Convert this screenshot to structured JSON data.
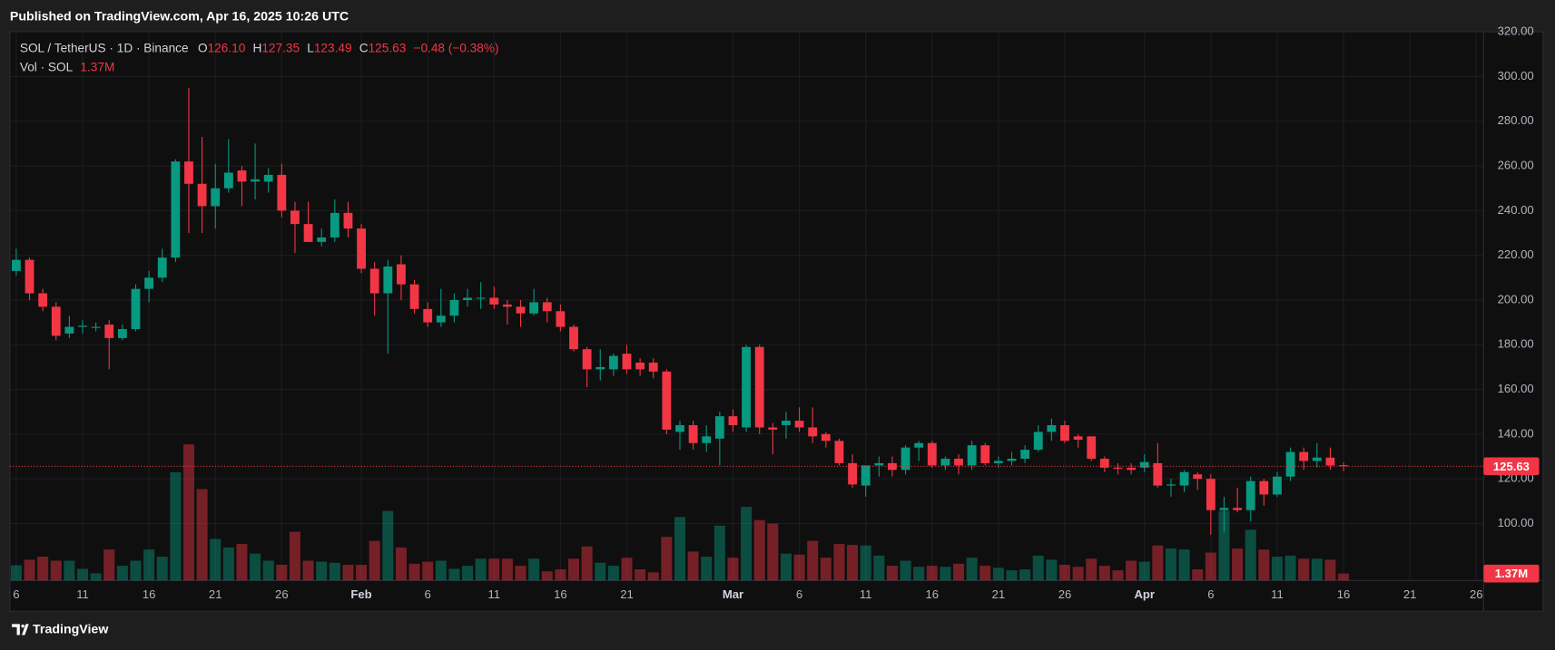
{
  "header": {
    "published": "Published on TradingView.com, Apr 16, 2025 10:26 UTC",
    "brand": "TradingView"
  },
  "chart_data": {
    "type": "candlestick",
    "symbol": "SOL / TetherUS · 1D · Binance",
    "legend": [
      {
        "key": "O",
        "value": "126.10"
      },
      {
        "key": "H",
        "value": "127.35"
      },
      {
        "key": "L",
        "value": "123.49"
      },
      {
        "key": "C",
        "value": "125.63"
      }
    ],
    "change": "−0.48 (−0.38%)",
    "volume_name": "Vol · SOL",
    "volume_value": "1.37M",
    "up_color": "#089981",
    "down_color": "#f23645",
    "x": [
      "2025-01-06",
      "2025-01-07",
      "2025-01-08",
      "2025-01-09",
      "2025-01-10",
      "2025-01-11",
      "2025-01-12",
      "2025-01-13",
      "2025-01-14",
      "2025-01-15",
      "2025-01-16",
      "2025-01-17",
      "2025-01-18",
      "2025-01-19",
      "2025-01-20",
      "2025-01-21",
      "2025-01-22",
      "2025-01-23",
      "2025-01-24",
      "2025-01-25",
      "2025-01-26",
      "2025-01-27",
      "2025-01-28",
      "2025-01-29",
      "2025-01-30",
      "2025-01-31",
      "2025-02-01",
      "2025-02-02",
      "2025-02-03",
      "2025-02-04",
      "2025-02-05",
      "2025-02-06",
      "2025-02-07",
      "2025-02-08",
      "2025-02-09",
      "2025-02-10",
      "2025-02-11",
      "2025-02-12",
      "2025-02-13",
      "2025-02-14",
      "2025-02-15",
      "2025-02-16",
      "2025-02-17",
      "2025-02-18",
      "2025-02-19",
      "2025-02-20",
      "2025-02-21",
      "2025-02-22",
      "2025-02-23",
      "2025-02-24",
      "2025-02-25",
      "2025-02-26",
      "2025-02-27",
      "2025-02-28",
      "2025-03-01",
      "2025-03-02",
      "2025-03-03",
      "2025-03-04",
      "2025-03-05",
      "2025-03-06",
      "2025-03-07",
      "2025-03-08",
      "2025-03-09",
      "2025-03-10",
      "2025-03-11",
      "2025-03-12",
      "2025-03-13",
      "2025-03-14",
      "2025-03-15",
      "2025-03-16",
      "2025-03-17",
      "2025-03-18",
      "2025-03-19",
      "2025-03-20",
      "2025-03-21",
      "2025-03-22",
      "2025-03-23",
      "2025-03-24",
      "2025-03-25",
      "2025-03-26",
      "2025-03-27",
      "2025-03-28",
      "2025-03-29",
      "2025-03-30",
      "2025-03-31",
      "2025-04-01",
      "2025-04-02",
      "2025-04-03",
      "2025-04-04",
      "2025-04-05",
      "2025-04-06",
      "2025-04-07",
      "2025-04-08",
      "2025-04-09",
      "2025-04-10",
      "2025-04-11",
      "2025-04-12",
      "2025-04-13",
      "2025-04-14",
      "2025-04-15",
      "2025-04-16"
    ],
    "open": [
      213,
      218,
      203,
      197,
      185,
      188,
      188,
      189,
      183,
      187,
      205,
      210,
      219,
      262,
      252,
      242,
      250,
      258,
      253,
      253,
      256,
      240,
      234,
      226,
      228,
      239,
      232,
      214,
      203,
      216,
      207,
      196,
      190,
      193,
      200,
      201,
      201,
      198,
      197,
      194,
      199,
      195,
      188,
      178,
      169,
      169,
      176,
      172,
      172,
      168,
      141,
      144,
      136,
      138,
      148,
      143,
      179,
      143,
      144,
      146,
      143,
      140,
      137,
      127,
      117,
      126,
      127,
      124,
      134,
      136,
      126,
      129,
      126,
      135,
      127,
      128,
      129,
      133,
      141,
      144,
      139,
      139,
      129,
      125,
      125,
      125,
      127,
      117,
      117,
      122,
      120,
      106,
      107,
      106,
      119,
      113,
      121,
      132,
      128,
      129.5,
      126.1
    ],
    "high": [
      223,
      219,
      205,
      199,
      193,
      191,
      190,
      191,
      189,
      207,
      213,
      223,
      263,
      295,
      273,
      261,
      272,
      260,
      270,
      259,
      261,
      244,
      244,
      232,
      245,
      244,
      234,
      217,
      218,
      220,
      209,
      199,
      205,
      203,
      205,
      208,
      206,
      200,
      200,
      205,
      201,
      198,
      189,
      179,
      178,
      176,
      180,
      174,
      174,
      169,
      146,
      146,
      144,
      150,
      151,
      180,
      180,
      145,
      150,
      152,
      152,
      141,
      138,
      131,
      126,
      130,
      130,
      135,
      137,
      137,
      130,
      131,
      137,
      136,
      130,
      132,
      135,
      144,
      147,
      146,
      140,
      139,
      130,
      127,
      127,
      131,
      136,
      120,
      124,
      123,
      122,
      112,
      116,
      121,
      120,
      123,
      134,
      134,
      136,
      134,
      127.35
    ],
    "low": [
      211,
      200,
      195,
      182,
      183,
      185,
      186,
      169,
      182,
      186,
      199,
      208,
      217,
      230,
      230,
      232,
      248,
      242,
      245,
      248,
      237,
      221,
      226,
      224,
      226,
      228,
      212,
      193,
      176,
      200,
      194,
      188,
      188,
      190,
      197,
      196,
      196,
      189,
      188,
      193,
      190,
      186,
      177,
      161,
      164,
      166,
      167,
      166,
      165,
      140,
      133,
      133,
      132,
      126,
      141,
      141,
      140,
      131,
      138,
      141,
      136,
      134,
      126,
      116,
      112,
      121,
      121,
      122,
      128,
      125,
      124,
      122,
      124,
      126,
      125,
      126,
      127,
      132,
      137,
      136,
      134,
      128,
      123,
      122,
      122,
      123,
      116,
      112,
      114,
      115,
      95,
      96,
      105,
      101,
      108,
      112,
      119,
      124,
      125,
      124,
      123.49
    ],
    "close": [
      218,
      203,
      197,
      184,
      188,
      188.5,
      188,
      183,
      187,
      205,
      210,
      219,
      262,
      252,
      242,
      250,
      257,
      253,
      254,
      256,
      240,
      234,
      226,
      228,
      239,
      232,
      214,
      203,
      215,
      207,
      196,
      190,
      193,
      200,
      201,
      201,
      198,
      197,
      194,
      199,
      195,
      188,
      178,
      169,
      170,
      175,
      169,
      169,
      168,
      142,
      144,
      136,
      139,
      148,
      144,
      179,
      143,
      142,
      146,
      143,
      139,
      137,
      127,
      117.5,
      126,
      127,
      124,
      134,
      136,
      126,
      129,
      126,
      135,
      127,
      128,
      129,
      133,
      141,
      144,
      137,
      137.5,
      129,
      125,
      124.5,
      124,
      127.5,
      117,
      117.5,
      123,
      120,
      106,
      107,
      106,
      119,
      113,
      121,
      132,
      128,
      129.5,
      126,
      125.63
    ],
    "volume": [
      3000000,
      4100000,
      4700000,
      3900000,
      3900000,
      2300000,
      1400000,
      6100000,
      2900000,
      3900000,
      6100000,
      4700000,
      21300000,
      26800000,
      18000000,
      8200000,
      6500000,
      7200000,
      5300000,
      3900000,
      3100000,
      9600000,
      3900000,
      3700000,
      3500000,
      3100000,
      3100000,
      7800000,
      13700000,
      6500000,
      3300000,
      3700000,
      3900000,
      2300000,
      2900000,
      4300000,
      4300000,
      4300000,
      2900000,
      4300000,
      1800000,
      2200000,
      4300000,
      6700000,
      3500000,
      2900000,
      4500000,
      2200000,
      1600000,
      8600000,
      12500000,
      5700000,
      4700000,
      10800000,
      4500000,
      14500000,
      11900000,
      11200000,
      5300000,
      5100000,
      7800000,
      4500000,
      7200000,
      7000000,
      6900000,
      4900000,
      2900000,
      3900000,
      2700000,
      2900000,
      2700000,
      3300000,
      4500000,
      2900000,
      2500000,
      2000000,
      2200000,
      4900000,
      4100000,
      3100000,
      2700000,
      4300000,
      2900000,
      2000000,
      3900000,
      3700000,
      6900000,
      6300000,
      6100000,
      2200000,
      5500000,
      13700000,
      6300000,
      10000000,
      6100000,
      4700000,
      4900000,
      4300000,
      4300000,
      4100000,
      1370000
    ],
    "xlim": [
      "2025-01-05",
      "2025-04-27"
    ],
    "xticks": [
      {
        "value": "2025-01-06",
        "label": "6"
      },
      {
        "value": "2025-01-11",
        "label": "11"
      },
      {
        "value": "2025-01-16",
        "label": "16"
      },
      {
        "value": "2025-01-21",
        "label": "21"
      },
      {
        "value": "2025-01-26",
        "label": "26"
      },
      {
        "value": "2025-02-01",
        "label": "Feb"
      },
      {
        "value": "2025-02-06",
        "label": "6"
      },
      {
        "value": "2025-02-11",
        "label": "11"
      },
      {
        "value": "2025-02-16",
        "label": "16"
      },
      {
        "value": "2025-02-21",
        "label": "21"
      },
      {
        "value": "2025-03-01",
        "label": "Mar"
      },
      {
        "value": "2025-03-06",
        "label": "6"
      },
      {
        "value": "2025-03-11",
        "label": "11"
      },
      {
        "value": "2025-03-16",
        "label": "16"
      },
      {
        "value": "2025-03-21",
        "label": "21"
      },
      {
        "value": "2025-03-26",
        "label": "26"
      },
      {
        "value": "2025-04-01",
        "label": "Apr"
      },
      {
        "value": "2025-04-06",
        "label": "6"
      },
      {
        "value": "2025-04-11",
        "label": "11"
      },
      {
        "value": "2025-04-16",
        "label": "16"
      },
      {
        "value": "2025-04-21",
        "label": "21"
      },
      {
        "value": "2025-04-26",
        "label": "26"
      }
    ],
    "ylim": [
      74.5,
      320
    ],
    "yticks": [
      {
        "value": 100,
        "label": "100.00"
      },
      {
        "value": 120,
        "label": "120.00"
      },
      {
        "value": 140,
        "label": "140.00"
      },
      {
        "value": 160,
        "label": "160.00"
      },
      {
        "value": 180,
        "label": "180.00"
      },
      {
        "value": 200,
        "label": "200.00"
      },
      {
        "value": 220,
        "label": "220.00"
      },
      {
        "value": 240,
        "label": "240.00"
      },
      {
        "value": 260,
        "label": "260.00"
      },
      {
        "value": 280,
        "label": "280.00"
      },
      {
        "value": 300,
        "label": "300.00"
      },
      {
        "value": 320,
        "label": "320.00"
      }
    ],
    "vlim": [
      0,
      108000000
    ],
    "grid": true
  }
}
